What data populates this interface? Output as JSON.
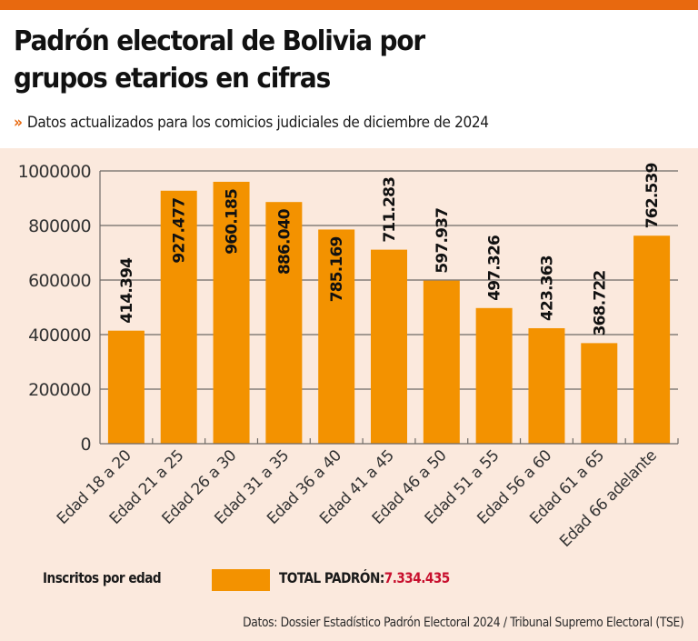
{
  "header": {
    "title_line1": "Padrón electoral de Bolivia por",
    "title_line2": "grupos etarios en cifras",
    "subtitle_icon": "double-chevron-right-icon",
    "subtitle_arrow": "»",
    "subtitle": "Datos actualizados para los comicios judiciales de diciembre de 2024"
  },
  "colors": {
    "accent": "#e8690f",
    "bar": "#f39200",
    "panel_background": "#fbe9dd",
    "total_value": "#c8102e"
  },
  "legend": {
    "series_label": "Inscritos por edad",
    "total_label": "TOTAL PADRÓN:",
    "total_value": "7.334.435"
  },
  "source": "Datos: Dossier Estadístico Padrón Electoral 2024 / Tribunal Supremo Electoral (TSE)",
  "chart_data": {
    "type": "bar",
    "title": "Padrón electoral de Bolivia por grupos etarios en cifras",
    "xlabel": "",
    "ylabel": "",
    "categories": [
      "Edad 18 a 20",
      "Edad 21 a 25",
      "Edad 26 a 30",
      "Edad 31 a 35",
      "Edad 36 a 40",
      "Edad 41 a 45",
      "Edad 46 a 50",
      "Edad 51 a 55",
      "Edad 56 a 60",
      "Edad 61 a 65",
      "Edad 66 adelante"
    ],
    "series": [
      {
        "name": "Inscritos por edad",
        "values": [
          414394,
          927477,
          960185,
          886040,
          785169,
          711283,
          597937,
          497326,
          423363,
          368722,
          762539
        ],
        "data_labels": [
          "414.394",
          "927.477",
          "960.185",
          "886.040",
          "785.169",
          "711.283",
          "597.937",
          "497.326",
          "423.363",
          "368.722",
          "762.539"
        ],
        "label_inside": [
          false,
          true,
          true,
          true,
          true,
          false,
          false,
          false,
          false,
          false,
          false
        ]
      }
    ],
    "ylim": [
      0,
      1000000
    ],
    "yticks": [
      0,
      200000,
      400000,
      600000,
      800000,
      1000000
    ],
    "ytick_labels": [
      "0",
      "200000",
      "400000",
      "600000",
      "800000",
      "1000000"
    ],
    "grid": true,
    "legend_position": "bottom-left",
    "total": "7.334.435"
  }
}
